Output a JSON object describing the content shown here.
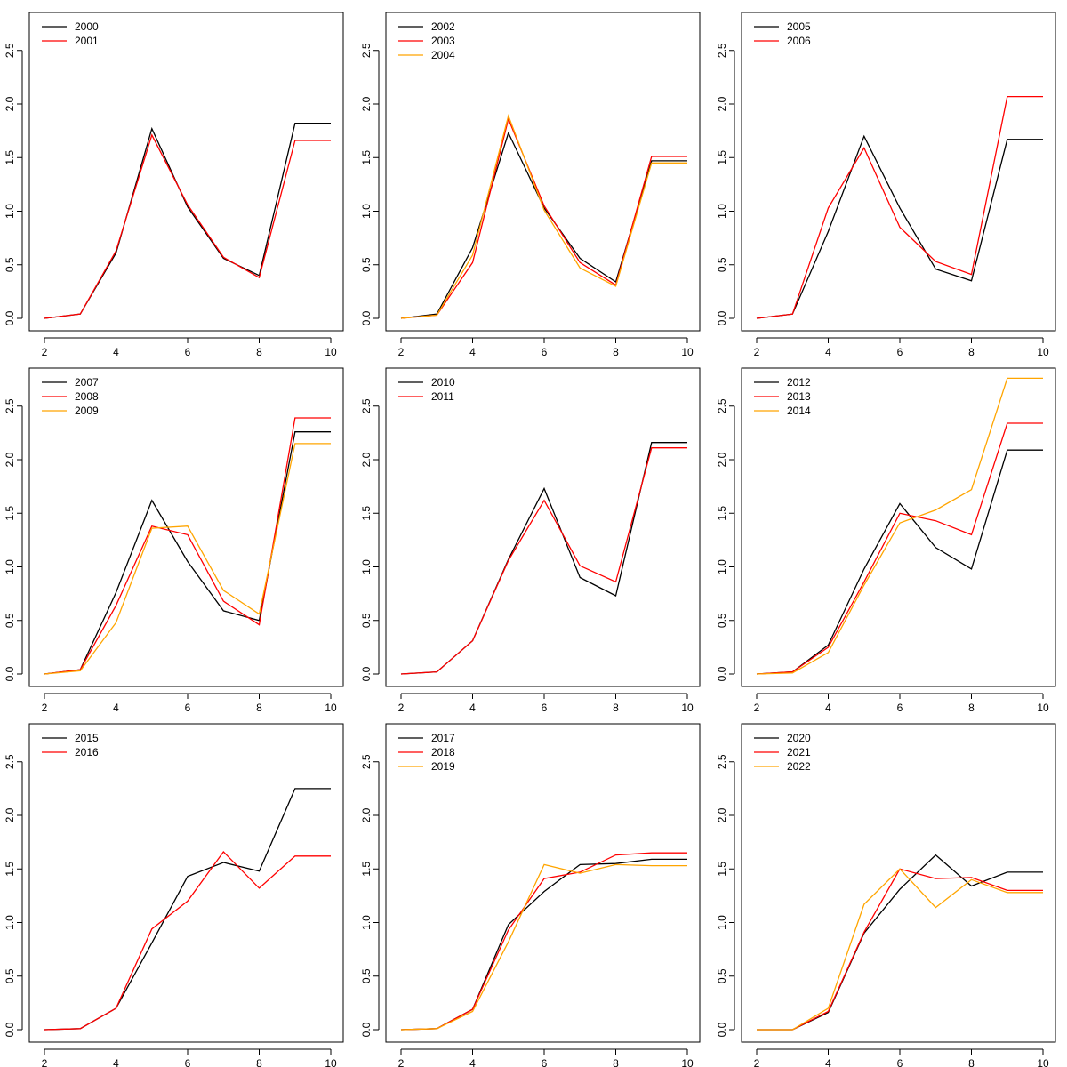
{
  "colors": {
    "series_1": "#000000",
    "series_2": "#ff0000",
    "series_3": "#ffa500"
  },
  "chart_data": [
    {
      "type": "line",
      "x": [
        2,
        3,
        4,
        5,
        6,
        7,
        8,
        9,
        10
      ],
      "xlim": [
        2,
        10
      ],
      "ylim": [
        0,
        2.7
      ],
      "xticks": [
        "2",
        "4",
        "6",
        "8",
        "10"
      ],
      "yticks": [
        "0.0",
        "0.5",
        "1.0",
        "1.5",
        "2.0",
        "2.5"
      ],
      "legend_position": "top-left",
      "series": [
        {
          "name": "2000",
          "color": "#000000",
          "values": [
            0.0,
            0.04,
            0.61,
            1.77,
            1.04,
            0.56,
            0.4,
            1.82,
            1.82
          ]
        },
        {
          "name": "2001",
          "color": "#ff0000",
          "values": [
            0.0,
            0.04,
            0.63,
            1.71,
            1.06,
            0.57,
            0.38,
            1.66,
            1.66
          ]
        }
      ]
    },
    {
      "type": "line",
      "x": [
        2,
        3,
        4,
        5,
        6,
        7,
        8,
        9,
        10
      ],
      "xlim": [
        2,
        10
      ],
      "ylim": [
        0,
        2.7
      ],
      "xticks": [
        "2",
        "4",
        "6",
        "8",
        "10"
      ],
      "yticks": [
        "0.0",
        "0.5",
        "1.0",
        "1.5",
        "2.0",
        "2.5"
      ],
      "legend_position": "top-left",
      "series": [
        {
          "name": "2002",
          "color": "#000000",
          "values": [
            0.0,
            0.04,
            0.66,
            1.73,
            1.03,
            0.56,
            0.34,
            1.47,
            1.47
          ]
        },
        {
          "name": "2003",
          "color": "#ff0000",
          "values": [
            0.0,
            0.03,
            0.52,
            1.86,
            1.05,
            0.52,
            0.31,
            1.51,
            1.51
          ]
        },
        {
          "name": "2004",
          "color": "#ffa500",
          "values": [
            0.0,
            0.03,
            0.59,
            1.89,
            1.01,
            0.47,
            0.3,
            1.45,
            1.45
          ]
        }
      ]
    },
    {
      "type": "line",
      "x": [
        2,
        3,
        4,
        5,
        6,
        7,
        8,
        9,
        10
      ],
      "xlim": [
        2,
        10
      ],
      "ylim": [
        0,
        2.7
      ],
      "xticks": [
        "2",
        "4",
        "6",
        "8",
        "10"
      ],
      "yticks": [
        "0.0",
        "0.5",
        "1.0",
        "1.5",
        "2.0",
        "2.5"
      ],
      "legend_position": "top-left",
      "series": [
        {
          "name": "2005",
          "color": "#000000",
          "values": [
            0.0,
            0.04,
            0.81,
            1.7,
            1.03,
            0.46,
            0.35,
            1.67,
            1.67
          ]
        },
        {
          "name": "2006",
          "color": "#ff0000",
          "values": [
            0.0,
            0.04,
            1.03,
            1.59,
            0.85,
            0.53,
            0.41,
            2.07,
            2.07
          ]
        }
      ]
    },
    {
      "type": "line",
      "x": [
        2,
        3,
        4,
        5,
        6,
        7,
        8,
        9,
        10
      ],
      "xlim": [
        2,
        10
      ],
      "ylim": [
        0,
        2.7
      ],
      "xticks": [
        "2",
        "4",
        "6",
        "8",
        "10"
      ],
      "yticks": [
        "0.0",
        "0.5",
        "1.0",
        "1.5",
        "2.0",
        "2.5"
      ],
      "legend_position": "top-left",
      "series": [
        {
          "name": "2007",
          "color": "#000000",
          "values": [
            0.0,
            0.04,
            0.76,
            1.62,
            1.05,
            0.59,
            0.5,
            2.26,
            2.26
          ]
        },
        {
          "name": "2008",
          "color": "#ff0000",
          "values": [
            0.0,
            0.04,
            0.64,
            1.38,
            1.3,
            0.68,
            0.46,
            2.39,
            2.39
          ]
        },
        {
          "name": "2009",
          "color": "#ffa500",
          "values": [
            0.0,
            0.03,
            0.48,
            1.36,
            1.38,
            0.78,
            0.56,
            2.15,
            2.15
          ]
        }
      ]
    },
    {
      "type": "line",
      "x": [
        2,
        3,
        4,
        5,
        6,
        7,
        8,
        9,
        10
      ],
      "xlim": [
        2,
        10
      ],
      "ylim": [
        0,
        2.7
      ],
      "xticks": [
        "2",
        "4",
        "6",
        "8",
        "10"
      ],
      "yticks": [
        "0.0",
        "0.5",
        "1.0",
        "1.5",
        "2.0",
        "2.5"
      ],
      "legend_position": "top-left",
      "series": [
        {
          "name": "2010",
          "color": "#000000",
          "values": [
            0.0,
            0.02,
            0.31,
            1.07,
            1.73,
            0.9,
            0.73,
            2.16,
            2.16
          ]
        },
        {
          "name": "2011",
          "color": "#ff0000",
          "values": [
            0.0,
            0.02,
            0.31,
            1.06,
            1.62,
            1.01,
            0.86,
            2.11,
            2.11
          ]
        }
      ]
    },
    {
      "type": "line",
      "x": [
        2,
        3,
        4,
        5,
        6,
        7,
        8,
        9,
        10
      ],
      "xlim": [
        2,
        10
      ],
      "ylim": [
        0,
        2.7
      ],
      "xticks": [
        "2",
        "4",
        "6",
        "8",
        "10"
      ],
      "yticks": [
        "0.0",
        "0.5",
        "1.0",
        "1.5",
        "2.0",
        "2.5"
      ],
      "legend_position": "top-left",
      "series": [
        {
          "name": "2012",
          "color": "#000000",
          "values": [
            0.0,
            0.02,
            0.27,
            0.98,
            1.59,
            1.18,
            0.98,
            2.09,
            2.09
          ]
        },
        {
          "name": "2013",
          "color": "#ff0000",
          "values": [
            0.0,
            0.02,
            0.25,
            0.86,
            1.5,
            1.43,
            1.3,
            2.34,
            2.34
          ]
        },
        {
          "name": "2014",
          "color": "#ffa500",
          "values": [
            0.0,
            0.01,
            0.2,
            0.83,
            1.41,
            1.53,
            1.72,
            2.76,
            2.76
          ]
        }
      ]
    },
    {
      "type": "line",
      "x": [
        2,
        3,
        4,
        5,
        6,
        7,
        8,
        9,
        10
      ],
      "xlim": [
        2,
        10
      ],
      "ylim": [
        0,
        2.7
      ],
      "xticks": [
        "2",
        "4",
        "6",
        "8",
        "10"
      ],
      "yticks": [
        "0.0",
        "0.5",
        "1.0",
        "1.5",
        "2.0",
        "2.5"
      ],
      "legend_position": "top-left",
      "series": [
        {
          "name": "2015",
          "color": "#000000",
          "values": [
            0.0,
            0.01,
            0.2,
            0.81,
            1.43,
            1.56,
            1.48,
            2.25,
            2.25
          ]
        },
        {
          "name": "2016",
          "color": "#ff0000",
          "values": [
            0.0,
            0.01,
            0.2,
            0.94,
            1.2,
            1.66,
            1.32,
            1.62,
            1.62
          ]
        }
      ]
    },
    {
      "type": "line",
      "x": [
        2,
        3,
        4,
        5,
        6,
        7,
        8,
        9,
        10
      ],
      "xlim": [
        2,
        10
      ],
      "ylim": [
        0,
        2.7
      ],
      "xticks": [
        "2",
        "4",
        "6",
        "8",
        "10"
      ],
      "yticks": [
        "0.0",
        "0.5",
        "1.0",
        "1.5",
        "2.0",
        "2.5"
      ],
      "legend_position": "top-left",
      "series": [
        {
          "name": "2017",
          "color": "#000000",
          "values": [
            0.0,
            0.01,
            0.19,
            0.98,
            1.29,
            1.54,
            1.55,
            1.59,
            1.59
          ]
        },
        {
          "name": "2018",
          "color": "#ff0000",
          "values": [
            0.0,
            0.01,
            0.19,
            0.93,
            1.41,
            1.47,
            1.63,
            1.65,
            1.65
          ]
        },
        {
          "name": "2019",
          "color": "#ffa500",
          "values": [
            0.0,
            0.01,
            0.17,
            0.82,
            1.54,
            1.46,
            1.54,
            1.53,
            1.53
          ]
        }
      ]
    },
    {
      "type": "line",
      "x": [
        2,
        3,
        4,
        5,
        6,
        7,
        8,
        9,
        10
      ],
      "xlim": [
        2,
        10
      ],
      "ylim": [
        0,
        2.7
      ],
      "xticks": [
        "2",
        "4",
        "6",
        "8",
        "10"
      ],
      "yticks": [
        "0.0",
        "0.5",
        "1.0",
        "1.5",
        "2.0",
        "2.5"
      ],
      "legend_position": "top-left",
      "series": [
        {
          "name": "2020",
          "color": "#000000",
          "values": [
            0.0,
            0.0,
            0.16,
            0.9,
            1.31,
            1.63,
            1.34,
            1.47,
            1.47
          ]
        },
        {
          "name": "2021",
          "color": "#ff0000",
          "values": [
            0.0,
            0.0,
            0.17,
            0.91,
            1.5,
            1.41,
            1.42,
            1.3,
            1.3
          ]
        },
        {
          "name": "2022",
          "color": "#ffa500",
          "values": [
            0.0,
            0.0,
            0.2,
            1.17,
            1.5,
            1.14,
            1.4,
            1.28,
            1.28
          ]
        }
      ]
    }
  ]
}
